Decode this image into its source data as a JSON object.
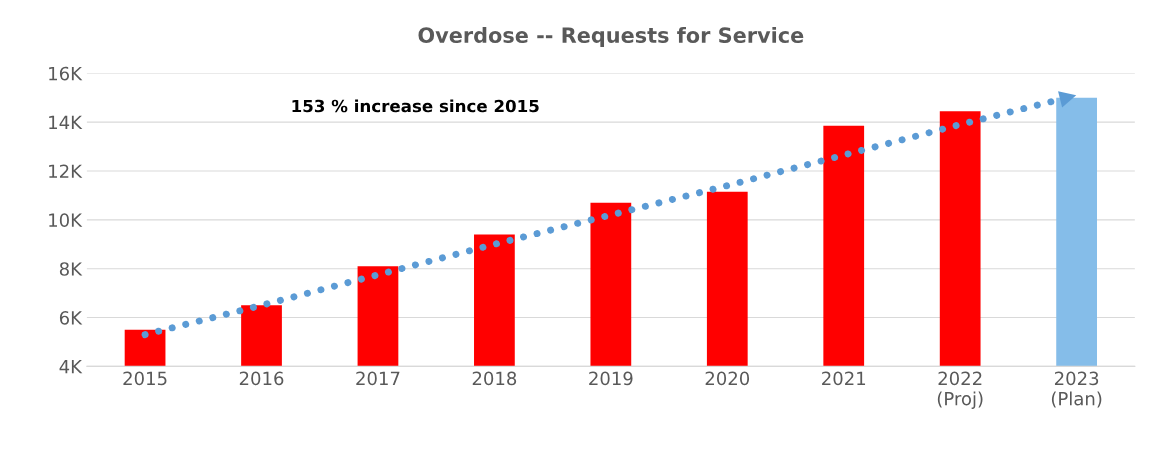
{
  "chart_data": {
    "type": "bar",
    "title": "Overdose -- Requests for Service",
    "categories": [
      "2015",
      "2016",
      "2017",
      "2018",
      "2019",
      "2020",
      "2021",
      "2022\n(Proj)",
      "2023\n(Plan)"
    ],
    "series": [
      {
        "colors": [
          "#ff0000",
          "#ff0000",
          "#ff0000",
          "#ff0000",
          "#ff0000",
          "#ff0000",
          "#ff0000",
          "#ff0000",
          "#85bde9"
        ],
        "values": [
          5.5,
          6.5,
          8.1,
          9.4,
          10.7,
          11.15,
          13.85,
          14.45,
          15.0
        ]
      },
      {
        "type": "line",
        "color": "#5b9bd5",
        "line_style": "dotted",
        "values": [
          5.3,
          6.5,
          7.75,
          9.0,
          10.2,
          11.4,
          12.65,
          13.9,
          15.1
        ]
      }
    ],
    "ylim": [
      4,
      16
    ],
    "yticks": [
      {
        "value": 4,
        "label": "4K"
      },
      {
        "value": 6,
        "label": "6K"
      },
      {
        "value": 8,
        "label": "8K"
      },
      {
        "value": 10,
        "label": "10K"
      },
      {
        "value": 12,
        "label": "12K"
      },
      {
        "value": 14,
        "label": "14K"
      },
      {
        "value": 16,
        "label": "16K"
      }
    ],
    "grid": "y",
    "annotations": [
      "153 % increase since 2015"
    ]
  }
}
